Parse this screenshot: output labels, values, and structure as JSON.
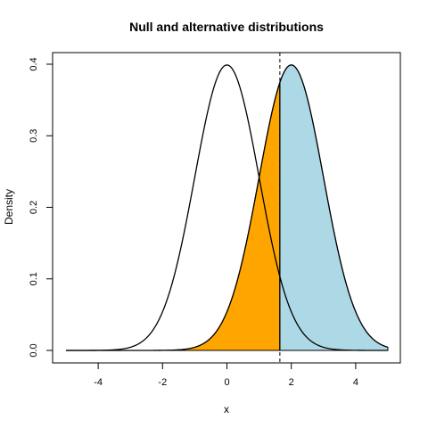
{
  "chart_data": {
    "type": "line",
    "title": "Null and alternative distributions",
    "xlabel": "x",
    "ylabel": "Density",
    "xlim": [
      -5,
      5
    ],
    "ylim": [
      0,
      0.4
    ],
    "x_ticks": [
      -4,
      -2,
      0,
      2,
      4
    ],
    "y_ticks": [
      0.0,
      0.1,
      0.2,
      0.3,
      0.4
    ],
    "x_tick_labels": [
      "-4",
      "-2",
      "0",
      "2",
      "4"
    ],
    "y_tick_labels": [
      "0.0",
      "0.1",
      "0.2",
      "0.3",
      "0.4"
    ],
    "grid": false,
    "series": [
      {
        "mean": 0,
        "sd": 1,
        "x_range": [
          -5,
          5
        ],
        "color": "#000000"
      },
      {
        "mean": 2,
        "sd": 1,
        "x_range": [
          -5,
          5
        ],
        "color": "#000000"
      }
    ],
    "critical_value": 1.645,
    "shaded_regions": [
      {
        "under_series": 1,
        "x_range": [
          -5,
          1.645
        ],
        "color": "#FFA500"
      },
      {
        "under_series": 1,
        "x_range": [
          1.645,
          5
        ],
        "color": "#ADD8E6"
      }
    ]
  }
}
